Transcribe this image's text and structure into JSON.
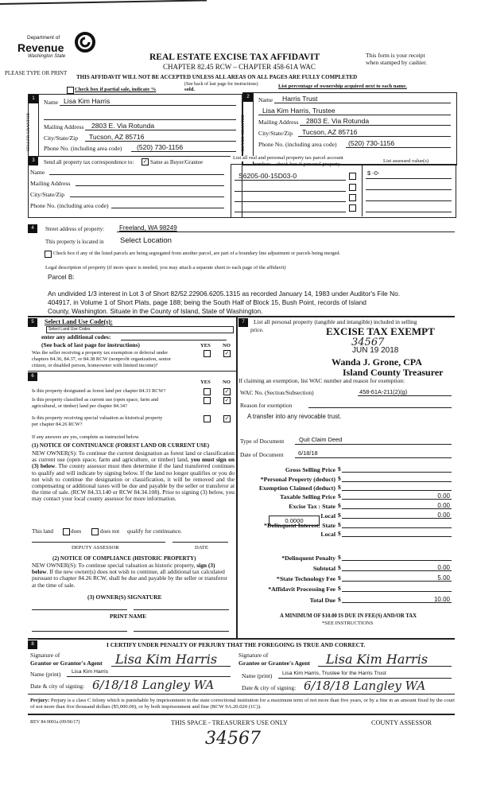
{
  "header": {
    "logo": {
      "line1": "Department of",
      "line2": "Revenue",
      "line3": "Washington State"
    },
    "title": "REAL ESTATE EXCISE TAX AFFIDAVIT",
    "chapter": "CHAPTER 82.45 RCW – CHAPTER 458-61A WAC",
    "receipt_note": [
      "This form is your receipt",
      "when stamped by cashier."
    ],
    "type_or_print": "PLEASE TYPE OR PRINT",
    "warning": "THIS AFFIDAVIT WILL NOT BE ACCEPTED UNLESS ALL AREAS ON ALL PAGES ARE FULLY COMPLETED",
    "see_back": "(See back of last page for instructions)",
    "partial_sale": "Check box if partial sale, indicate %",
    "sold": "sold.",
    "ownership_note": "List percentage of ownership acquired next to each name."
  },
  "seller": {
    "num": "1",
    "side_label": "SELLER GRANTOR",
    "name_label": "Name",
    "name": "Lisa Kim Harris",
    "mailing_label": "Mailing Address",
    "mailing": "2803 E. Via Rotunda",
    "city_label": "City/State/Zip",
    "city": "Tucson, AZ  85716",
    "phone_label": "Phone No. (including area code)",
    "phone": "(520) 730-1156"
  },
  "buyer": {
    "num": "2",
    "side_label": "BUYER GRANTEE",
    "name_label": "Name",
    "name": "Harris Trust",
    "name2": "Lisa Kim Harris, Trustee",
    "mailing_label": "Mailing Address",
    "mailing": "2803 E. Via Rotunda",
    "city_label": "City/State/Zip",
    "city": "Tucson, AZ  85716",
    "phone_label": "Phone No. (including area code)",
    "phone": "(520) 730-1156"
  },
  "correspondence": {
    "num": "3",
    "label": "Send all property tax correspondence to:",
    "same_label": "Same as Buyer/Grantee",
    "same_checked": true,
    "name_label": "Name",
    "mailing_label": "Mailing Address",
    "city_label": "City/State/Zip",
    "phone_label": "Phone No. (including area code)"
  },
  "parcels": {
    "header": [
      "List all real and personal property tax parcel account",
      "numbers – check box if personal property"
    ],
    "assessed_header": "List assessed value(s)",
    "rows": [
      {
        "number": "S6205-00-15D03-0",
        "personal": false,
        "value": "$ -0-"
      },
      {
        "number": "",
        "personal": false,
        "value": ""
      },
      {
        "number": "",
        "personal": false,
        "value": ""
      },
      {
        "number": "",
        "personal": false,
        "value": ""
      }
    ]
  },
  "property": {
    "num": "4",
    "street_label": "Street address of property:",
    "street": "Freeland, WA  98249",
    "located_label": "This property is located in",
    "located": "Select Location",
    "segregated_label": "Check box if any of the listed parcels are being segregated from another parcel, are part of a boundary line adjustment or parcels being merged.",
    "legal_label": "Legal description of property (if more space is needed, you may attach a separate sheet to each page of the affidavit)",
    "legal": [
      "Parcel B:",
      "An undivided 1/3 interest in Lot 3 of Short 82/52.22906.6205.1315 as recorded January 14, 1983 under Auditor's File No.",
      "404917, in Volume 1 of Short Plats, page 188; being the South Half of Block 15, Bush Point, records of Island",
      "County, Washington.  Situate in the County of Island, State of Washington."
    ]
  },
  "land_use": {
    "num": "5",
    "label": "Select Land Use Code(s):",
    "select_value": "Select Land Use Codes",
    "additional_label": "enter any additional codes:",
    "see_back": "(See back of last page for instructions)",
    "yes": "YES",
    "no": "NO",
    "question": [
      "Was the seller receiving a property tax exemption or deferral under",
      "chapters 84.36, 84.37, or 84.38 RCW (nonprofit organization, senior",
      "citizen, or disabled person, homeowner with limited income)?"
    ],
    "answer": "NO"
  },
  "forest": {
    "num": "6",
    "yes": "YES",
    "no": "NO",
    "questions": [
      {
        "text": [
          "Is this property designated as forest land per chapter 84.33 RCW?"
        ],
        "answer": "NO"
      },
      {
        "text": [
          "Is this property classified as current use (open space, farm and",
          "agricultural, or timber) land per chapter 84.34?"
        ],
        "answer": "NO"
      },
      {
        "text": [
          "Is this property receiving special valuation as historical property",
          "per chapter 84.26 RCW?"
        ],
        "answer": "NO"
      }
    ],
    "if_yes": "If any answers are yes, complete as instructed below.",
    "notice1_title": "(1) NOTICE OF CONTINUANCE (FOREST LAND OR CURRENT USE)",
    "notice1_a": "NEW OWNER(S): To continue the current designation as forest land or classification as current use (open space, farm and agriculture, or timber) land, ",
    "notice1_bold": "you must sign on (3) below",
    "notice1_b": ". The county assessor must then determine if the land transferred continues to qualify and will indicate by signing below. If the land no longer qualifies or you do not wish to continue the designation or classification, it will be removed and the compensating or additional taxes will be due and payable by the seller or transferor at the time of sale. (RCW 84.33.140 or RCW 84.34.108). Prior to signing (3) below, you may contact your local county assessor for more information.",
    "this_land": "This land",
    "does": "does",
    "does_not": "does not",
    "qualify": "qualify for continuance.",
    "deputy": "DEPUTY ASSESSOR",
    "date": "DATE",
    "notice2_title": "(2) NOTICE OF COMPLIANCE (HISTORIC PROPERTY)",
    "notice2_a": "NEW OWNER(S): To continue special valuation as historic property, ",
    "notice2_bold": "sign (3) below",
    "notice2_b": ". If the new owner(s) does not wish to continue, all additional tax calculated pursuant to chapter 84.26 RCW, shall be due and payable by the seller or transferor at the time of sale.",
    "owner_sig": "(3) OWNER(S) SIGNATURE",
    "print_name": "PRINT NAME"
  },
  "personal_property": {
    "num": "7",
    "label": "List all  personal property (tangible and intangible) included in selling",
    "label2": "price.",
    "exemption_label": "If claiming an exemption, list WAC number and reason for exemption:",
    "wac_label": "WAC No. (Section/Subsection)",
    "wac": "458-61A-211(2)(g)",
    "reason_label": "Reason for exemption",
    "reason": "A transfer into any revocable trust.",
    "doc_type_label": "Type of Document",
    "doc_type": "Quit Claim Deed",
    "doc_date_label": "Date of Document",
    "doc_date": "6/18/18"
  },
  "stamp": {
    "line1": "EXCISE TAX EXEMPT",
    "number": "34567",
    "date": "JUN 19 2018",
    "name": "Wanda J. Grone, CPA",
    "title": "Island County Treasurer"
  },
  "amounts": {
    "rows": [
      {
        "label": "Gross Selling Price",
        "value": ""
      },
      {
        "label": "*Personal Property (deduct)",
        "value": ""
      },
      {
        "label": "Exemption Claimed (deduct)",
        "value": ""
      },
      {
        "label": "Taxable Selling Price",
        "value": "0.00"
      },
      {
        "label": "Excise Tax : State",
        "value": "0.00"
      },
      {
        "label": "Local",
        "value": "0.00"
      },
      {
        "label": "*Delinquent Interest: State",
        "value": ""
      },
      {
        "label": "Local",
        "value": ""
      },
      {
        "label": "*Delinquent Penalty",
        "value": ""
      },
      {
        "label": "Subtotal",
        "value": "0.00"
      },
      {
        "label": "*State Technology Fee",
        "value": "5.00"
      },
      {
        "label": "*Affidavit Processing Fee",
        "value": ""
      },
      {
        "label": "Total Due",
        "value": "10.00"
      }
    ],
    "local_rate": "0.0000",
    "minimum": "A MINIMUM OF $10.00 IS DUE IN FEE(S) AND/OR TAX",
    "see_instructions": "*SEE INSTRUCTIONS"
  },
  "certify": {
    "num": "8",
    "statement": "I CERTIFY UNDER PENALTY OF PERJURY THAT THE FOREGOING IS TRUE AND CORRECT.",
    "grantor_sig_label1": "Signature of",
    "grantor_sig_label2": "Grantor or Grantor's Agent",
    "grantor_signature": "Lisa Kim Harris",
    "grantee_sig_label1": "Signature of",
    "grantee_sig_label2": "Grantee or Grantee's Agent",
    "grantee_signature": "Lisa Kim Harris",
    "name_print_label": "Name (print)",
    "grantor_name": "Lisa Kim Harris",
    "grantee_name": "Lisa Kim Harris, Trustee for the Harris Trust",
    "date_city_label": "Date & city of signing:",
    "grantor_date_city": "6/18/18  Langley WA",
    "grantee_date_city": "6/18/18  Langley WA",
    "perjury_bold": "Perjury:",
    "perjury": " Perjury is a class C felony which is punishable by imprisonment in the state correctional institution for a maximum term of not more than five years, or by a fine in an amount fixed by the court of not more than five thousand dollars ($5,000.00), or by both imprisonment and fine (RCW 9A.20.020 (1C))."
  },
  "footer": {
    "form_no": "REV 84 0001a (09/06/17)",
    "treasurer": "THIS SPACE - TREASURER'S USE ONLY",
    "assessor": "COUNTY ASSESSOR",
    "number": "34567"
  }
}
